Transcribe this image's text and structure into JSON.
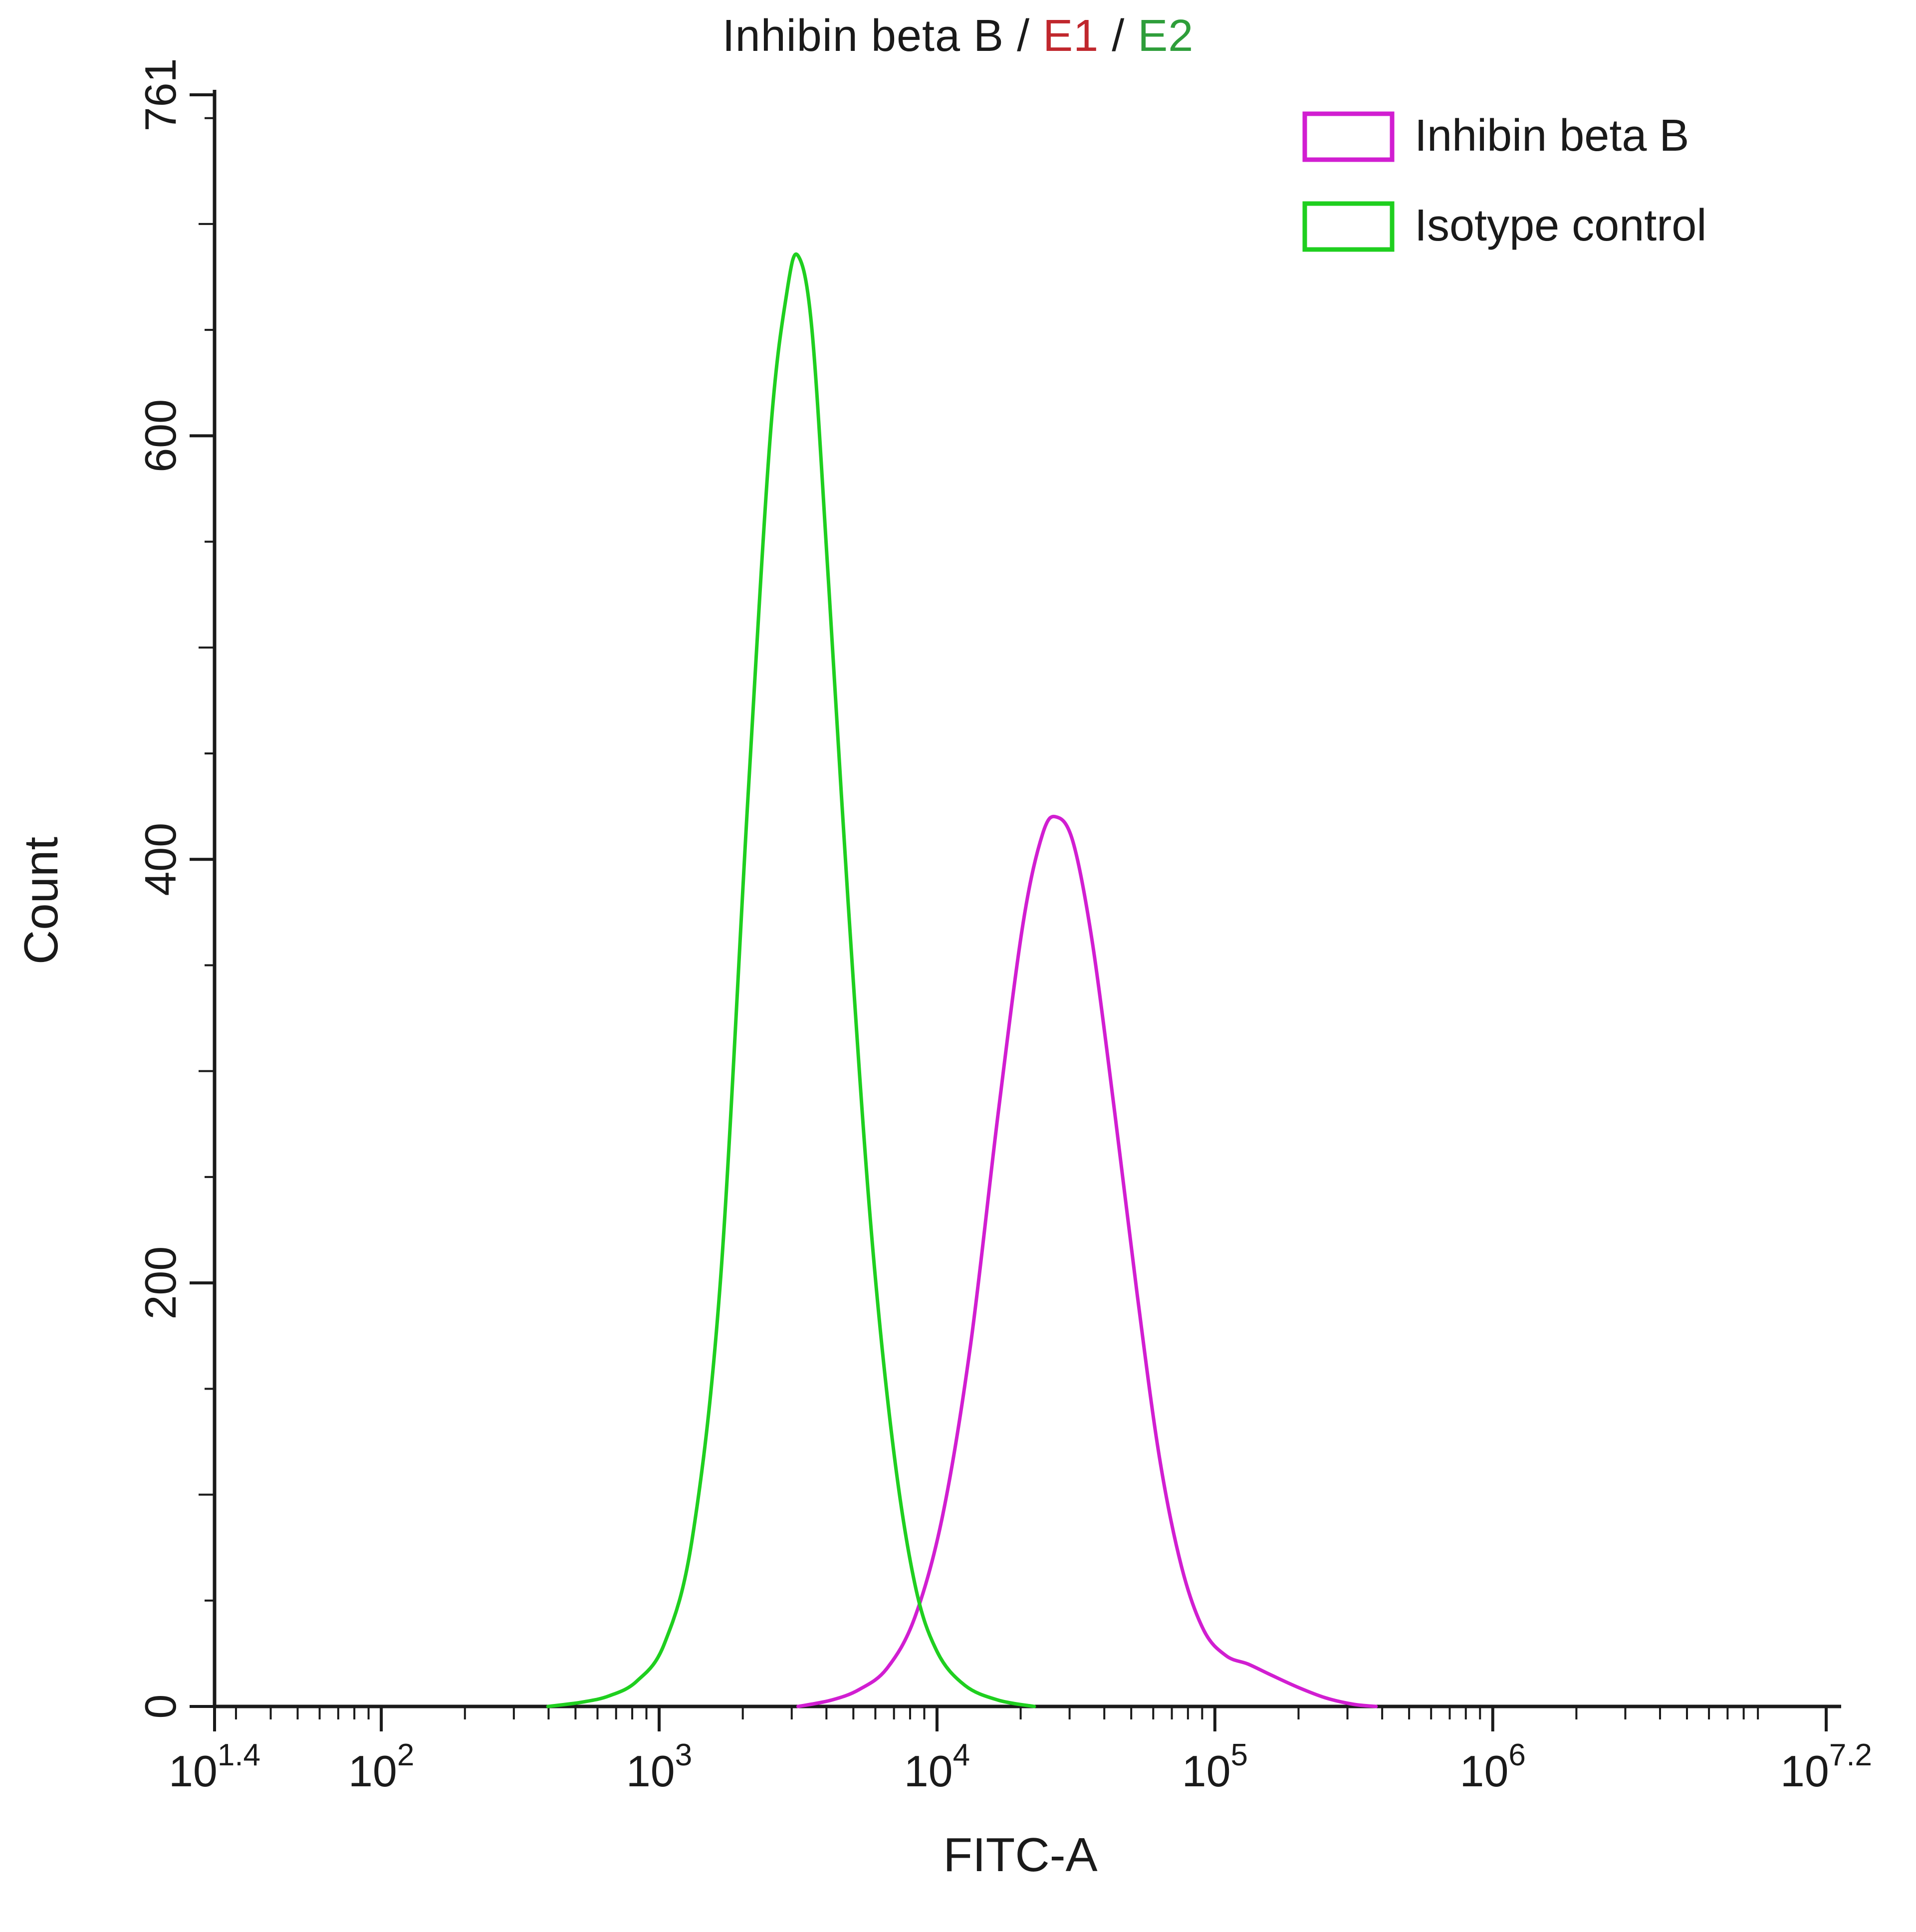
{
  "chart_data": {
    "type": "line",
    "title_parts": [
      {
        "text": "Inhibin beta B ",
        "color": "#1a1a1a"
      },
      {
        "text": "/ ",
        "color": "#1a1a1a"
      },
      {
        "text": "E1",
        "color": "#c0272d"
      },
      {
        "text": " / ",
        "color": "#1a1a1a"
      },
      {
        "text": "E2",
        "color": "#2e9e3a"
      }
    ],
    "xlabel": "FITC-A",
    "ylabel": "Count",
    "x_scale": "log10",
    "x_range_log": [
      1.4,
      7.2
    ],
    "y_range": [
      0,
      761
    ],
    "axis_color": "#1a1a1a",
    "x_ticks": [
      {
        "log": 1.4,
        "base": "10",
        "exp": "1.4"
      },
      {
        "log": 2,
        "base": "10",
        "exp": "2"
      },
      {
        "log": 3,
        "base": "10",
        "exp": "3"
      },
      {
        "log": 4,
        "base": "10",
        "exp": "4"
      },
      {
        "log": 5,
        "base": "10",
        "exp": "5"
      },
      {
        "log": 6,
        "base": "10",
        "exp": "6"
      },
      {
        "log": 7.2,
        "base": "10",
        "exp": "7.2"
      }
    ],
    "y_ticks": [
      {
        "value": 0,
        "label": "0"
      },
      {
        "value": 200,
        "label": "200"
      },
      {
        "value": 400,
        "label": "400"
      },
      {
        "value": 600,
        "label": "600"
      },
      {
        "value": 761,
        "label": "761"
      }
    ],
    "legend_position": "top-right",
    "legend": [
      {
        "label": "Inhibin beta B",
        "color": "#d11ed1"
      },
      {
        "label": "Isotype control",
        "color": "#1fcf1f"
      }
    ],
    "series": [
      {
        "name": "Inhibin beta B",
        "color": "#d11ed1",
        "points_logx_count": [
          [
            3.5,
            0
          ],
          [
            3.62,
            3
          ],
          [
            3.72,
            8
          ],
          [
            3.82,
            18
          ],
          [
            3.92,
            42
          ],
          [
            4.02,
            90
          ],
          [
            4.12,
            170
          ],
          [
            4.22,
            280
          ],
          [
            4.31,
            370
          ],
          [
            4.38,
            412
          ],
          [
            4.43,
            420
          ],
          [
            4.49,
            408
          ],
          [
            4.56,
            360
          ],
          [
            4.64,
            280
          ],
          [
            4.72,
            195
          ],
          [
            4.8,
            118
          ],
          [
            4.88,
            66
          ],
          [
            4.96,
            36
          ],
          [
            5.04,
            24
          ],
          [
            5.12,
            20
          ],
          [
            5.2,
            15
          ],
          [
            5.3,
            9
          ],
          [
            5.4,
            4
          ],
          [
            5.5,
            1
          ],
          [
            5.58,
            0
          ]
        ]
      },
      {
        "name": "Isotype control",
        "color": "#1fcf1f",
        "points_logx_count": [
          [
            2.6,
            0
          ],
          [
            2.72,
            2
          ],
          [
            2.82,
            5
          ],
          [
            2.92,
            12
          ],
          [
            3.02,
            30
          ],
          [
            3.12,
            80
          ],
          [
            3.22,
            200
          ],
          [
            3.32,
            430
          ],
          [
            3.4,
            600
          ],
          [
            3.46,
            668
          ],
          [
            3.5,
            685
          ],
          [
            3.55,
            650
          ],
          [
            3.61,
            530
          ],
          [
            3.68,
            380
          ],
          [
            3.76,
            230
          ],
          [
            3.84,
            125
          ],
          [
            3.92,
            58
          ],
          [
            4.0,
            26
          ],
          [
            4.1,
            10
          ],
          [
            4.22,
            3
          ],
          [
            4.35,
            0
          ]
        ]
      }
    ]
  }
}
